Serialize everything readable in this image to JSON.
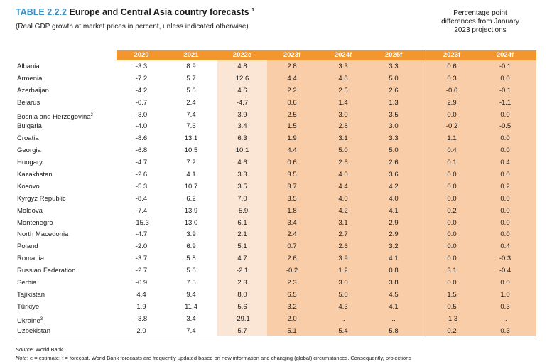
{
  "header": {
    "table_number": "TABLE 2.2.2",
    "title": "Europe and Central Asia country forecasts",
    "title_footnote": "1",
    "subtitle": "(Real GDP growth at market prices in percent, unless indicated otherwise)",
    "pp_heading_line1": "Percentage point",
    "pp_heading_line2": "differences from January",
    "pp_heading_line3": "2023 projections"
  },
  "columns": [
    "2020",
    "2021",
    "2022e",
    "2023f",
    "2024f",
    "2025f"
  ],
  "pp_columns": [
    "2023f",
    "2024f"
  ],
  "rows": [
    {
      "country": "Albania",
      "sup": "",
      "v": [
        "-3.3",
        "8.9",
        "4.8",
        "2.8",
        "3.3",
        "3.3"
      ],
      "pp": [
        "0.6",
        "-0.1"
      ]
    },
    {
      "country": "Armenia",
      "sup": "",
      "v": [
        "-7.2",
        "5.7",
        "12.6",
        "4.4",
        "4.8",
        "5.0"
      ],
      "pp": [
        "0.3",
        "0.0"
      ]
    },
    {
      "country": "Azerbaijan",
      "sup": "",
      "v": [
        "-4.2",
        "5.6",
        "4.6",
        "2.2",
        "2.5",
        "2.6"
      ],
      "pp": [
        "-0.6",
        "-0.1"
      ]
    },
    {
      "country": "Belarus",
      "sup": "",
      "v": [
        "-0.7",
        "2.4",
        "-4.7",
        "0.6",
        "1.4",
        "1.3"
      ],
      "pp": [
        "2.9",
        "-1.1"
      ]
    },
    {
      "country": "Bosnia and Herzegovina",
      "sup": "2",
      "v": [
        "-3.0",
        "7.4",
        "3.9",
        "2.5",
        "3.0",
        "3.5"
      ],
      "pp": [
        "0.0",
        "0.0"
      ]
    },
    {
      "country": "Bulgaria",
      "sup": "",
      "v": [
        "-4.0",
        "7.6",
        "3.4",
        "1.5",
        "2.8",
        "3.0"
      ],
      "pp": [
        "-0.2",
        "-0.5"
      ]
    },
    {
      "country": "Croatia",
      "sup": "",
      "v": [
        "-8.6",
        "13.1",
        "6.3",
        "1.9",
        "3.1",
        "3.3"
      ],
      "pp": [
        "1.1",
        "0.0"
      ]
    },
    {
      "country": "Georgia",
      "sup": "",
      "v": [
        "-6.8",
        "10.5",
        "10.1",
        "4.4",
        "5.0",
        "5.0"
      ],
      "pp": [
        "0.4",
        "0.0"
      ]
    },
    {
      "country": "Hungary",
      "sup": "",
      "v": [
        "-4.7",
        "7.2",
        "4.6",
        "0.6",
        "2.6",
        "2.6"
      ],
      "pp": [
        "0.1",
        "0.4"
      ]
    },
    {
      "country": "Kazakhstan",
      "sup": "",
      "v": [
        "-2.6",
        "4.1",
        "3.3",
        "3.5",
        "4.0",
        "3.6"
      ],
      "pp": [
        "0.0",
        "0.0"
      ]
    },
    {
      "country": "Kosovo",
      "sup": "",
      "v": [
        "-5.3",
        "10.7",
        "3.5",
        "3.7",
        "4.4",
        "4.2"
      ],
      "pp": [
        "0.0",
        "0.2"
      ]
    },
    {
      "country": "Kyrgyz Republic",
      "sup": "",
      "v": [
        "-8.4",
        "6.2",
        "7.0",
        "3.5",
        "4.0",
        "4.0"
      ],
      "pp": [
        "0.0",
        "0.0"
      ]
    },
    {
      "country": "Moldova",
      "sup": "",
      "v": [
        "-7.4",
        "13.9",
        "-5.9",
        "1.8",
        "4.2",
        "4.1"
      ],
      "pp": [
        "0.2",
        "0.0"
      ]
    },
    {
      "country": "Montenegro",
      "sup": "",
      "v": [
        "-15.3",
        "13.0",
        "6.1",
        "3.4",
        "3.1",
        "2.9"
      ],
      "pp": [
        "0.0",
        "0.0"
      ]
    },
    {
      "country": "North Macedonia",
      "sup": "",
      "v": [
        "-4.7",
        "3.9",
        "2.1",
        "2.4",
        "2.7",
        "2.9"
      ],
      "pp": [
        "0.0",
        "0.0"
      ]
    },
    {
      "country": "Poland",
      "sup": "",
      "v": [
        "-2.0",
        "6.9",
        "5.1",
        "0.7",
        "2.6",
        "3.2"
      ],
      "pp": [
        "0.0",
        "0.4"
      ]
    },
    {
      "country": "Romania",
      "sup": "",
      "v": [
        "-3.7",
        "5.8",
        "4.7",
        "2.6",
        "3.9",
        "4.1"
      ],
      "pp": [
        "0.0",
        "-0.3"
      ]
    },
    {
      "country": "Russian Federation",
      "sup": "",
      "v": [
        "-2.7",
        "5.6",
        "-2.1",
        "-0.2",
        "1.2",
        "0.8"
      ],
      "pp": [
        "3.1",
        "-0.4"
      ]
    },
    {
      "country": "Serbia",
      "sup": "",
      "v": [
        "-0.9",
        "7.5",
        "2.3",
        "2.3",
        "3.0",
        "3.8"
      ],
      "pp": [
        "0.0",
        "0.0"
      ]
    },
    {
      "country": "Tajikistan",
      "sup": "",
      "v": [
        "4.4",
        "9.4",
        "8.0",
        "6.5",
        "5.0",
        "4.5"
      ],
      "pp": [
        "1.5",
        "1.0"
      ]
    },
    {
      "country": "Türkiye",
      "sup": "",
      "v": [
        "1.9",
        "11.4",
        "5.6",
        "3.2",
        "4.3",
        "4.1"
      ],
      "pp": [
        "0.5",
        "0.3"
      ]
    },
    {
      "country": "Ukraine",
      "sup": "3",
      "v": [
        "-3.8",
        "3.4",
        "-29.1",
        "2.0",
        "..",
        ".."
      ],
      "pp": [
        "-1.3",
        ".."
      ]
    },
    {
      "country": "Uzbekistan",
      "sup": "",
      "v": [
        "2.0",
        "7.4",
        "5.7",
        "5.1",
        "5.4",
        "5.8"
      ],
      "pp": [
        "0.2",
        "0.3"
      ]
    }
  ],
  "notes": {
    "source_label": "Source",
    "source_text": ": World Bank.",
    "note_label": "Note",
    "note_text": ": e = estimate; f = forecast. World Bank forecasts are frequently updated based on new information and changing (global) circumstances. Consequently, projections"
  },
  "colors": {
    "header_orange": "#f4962e",
    "forecast_band": "#f9cda8",
    "estimate_band": "#fbe6d6",
    "title_blue": "#3d8fc0"
  }
}
